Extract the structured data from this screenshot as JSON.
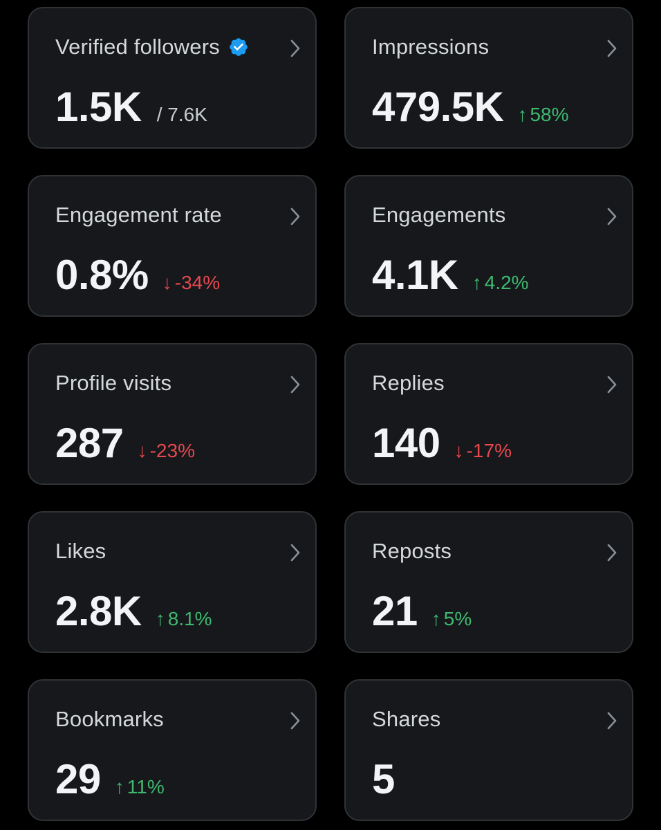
{
  "colors": {
    "background": "#000000",
    "card": "#16181c",
    "border": "#2f3336",
    "up": "#3fb96f",
    "down": "#e5484d",
    "verified": "#1d9bf0"
  },
  "cards": [
    {
      "title": "Verified followers",
      "value": "1.5K",
      "suffix": "/ 7.6K",
      "verified": true
    },
    {
      "title": "Impressions",
      "value": "479.5K",
      "change": "58%",
      "direction": "up",
      "arrow": "↑"
    },
    {
      "title": "Engagement rate",
      "value": "0.8%",
      "change": "-34%",
      "direction": "down",
      "arrow": "↓"
    },
    {
      "title": "Engagements",
      "value": "4.1K",
      "change": "4.2%",
      "direction": "up",
      "arrow": "↑"
    },
    {
      "title": "Profile visits",
      "value": "287",
      "change": "-23%",
      "direction": "down",
      "arrow": "↓"
    },
    {
      "title": "Replies",
      "value": "140",
      "change": "-17%",
      "direction": "down",
      "arrow": "↓"
    },
    {
      "title": "Likes",
      "value": "2.8K",
      "change": "8.1%",
      "direction": "up",
      "arrow": "↑"
    },
    {
      "title": "Reposts",
      "value": "21",
      "change": "5%",
      "direction": "up",
      "arrow": "↑"
    },
    {
      "title": "Bookmarks",
      "value": "29",
      "change": "11%",
      "direction": "up",
      "arrow": "↑"
    },
    {
      "title": "Shares",
      "value": "5"
    }
  ]
}
